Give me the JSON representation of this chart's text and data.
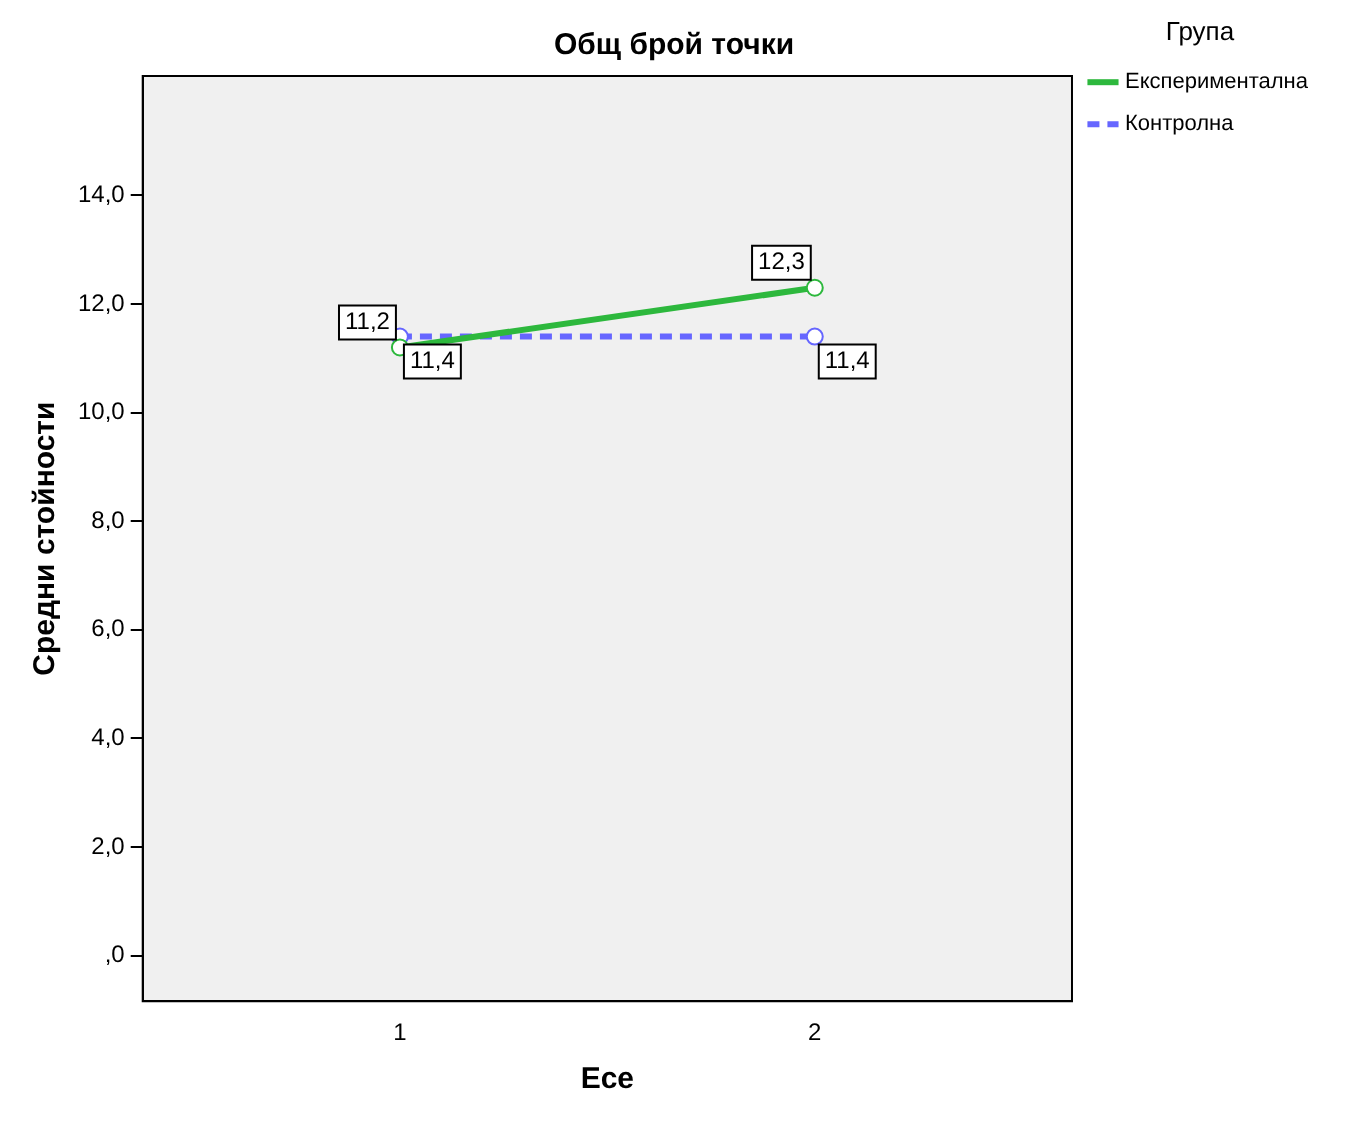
{
  "chart_data": {
    "type": "line",
    "title": "Общ брой точки",
    "xlabel": "Есе",
    "ylabel": "Средни стойности",
    "legend_title": "Група",
    "categories": [
      "1",
      "2"
    ],
    "series": [
      {
        "name": "Експериментална",
        "color": "#2db83d",
        "values": [
          11.2,
          12.3
        ],
        "value_labels": [
          "11,2",
          "12,3"
        ],
        "line_style": "solid"
      },
      {
        "name": "Контролна",
        "color": "#6666ff",
        "values": [
          11.4,
          11.4
        ],
        "value_labels": [
          "11,4",
          "11,4"
        ],
        "line_style": "dashed"
      }
    ],
    "ylim": [
      -0.84,
      16.2
    ],
    "yticks": [
      {
        "value": 0,
        "label": ",0"
      },
      {
        "value": 2,
        "label": "2,0"
      },
      {
        "value": 4,
        "label": "4,0"
      },
      {
        "value": 6,
        "label": "6,0"
      },
      {
        "value": 8,
        "label": "8,0"
      },
      {
        "value": 10,
        "label": "10,0"
      },
      {
        "value": 12,
        "label": "12,0"
      },
      {
        "value": 14,
        "label": "14,0"
      }
    ],
    "marker": "circle",
    "legend": "top right",
    "grid": false
  }
}
